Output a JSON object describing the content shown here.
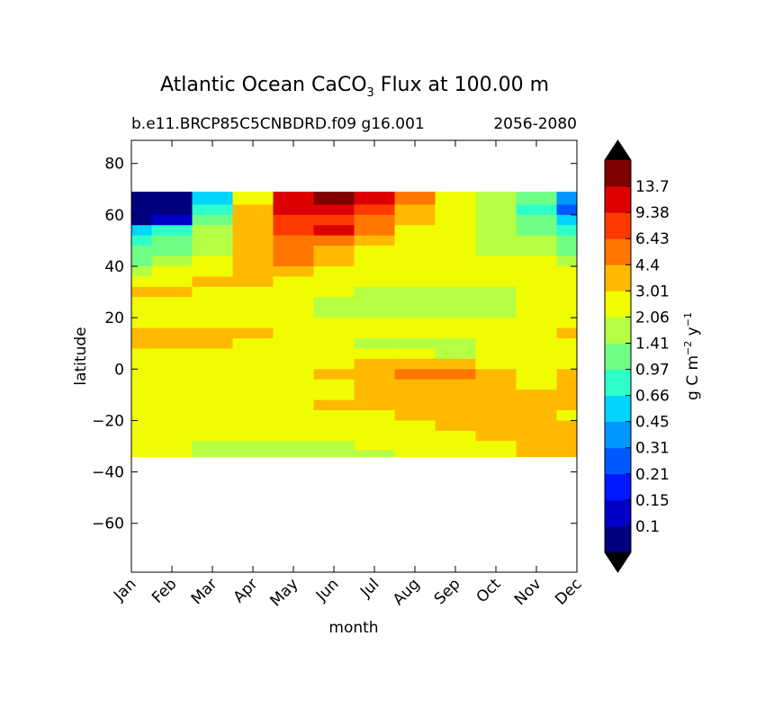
{
  "chart_data": {
    "type": "heatmap",
    "title_prefix": "Atlantic Ocean CaCO",
    "title_sub": "3",
    "title_suffix": " Flux at 100.00 m",
    "subtitle_left": "b.e11.BRCP85C5CNBDRD.f09 g16.001",
    "subtitle_right": "2056-2080",
    "xlabel": "month",
    "ylabel": "latitude",
    "x_ticks": [
      "Jan",
      "Feb",
      "Mar",
      "Apr",
      "May",
      "Jun",
      "Jul",
      "Aug",
      "Sep",
      "Oct",
      "Nov",
      "Dec"
    ],
    "y_ticks": [
      80,
      60,
      40,
      20,
      0,
      -20,
      -40,
      -60
    ],
    "ylim": [
      -79,
      89
    ],
    "data_lat_range": [
      -34,
      69
    ],
    "colorbar_label": "g C m",
    "colorbar_label_exp1": "−2",
    "colorbar_label_mid": " y",
    "colorbar_label_exp2": "−1",
    "levels": [
      "0.1",
      "0.15",
      "0.21",
      "0.31",
      "0.45",
      "0.66",
      "0.97",
      "1.41",
      "2.06",
      "3.01",
      "4.4",
      "6.43",
      "9.38",
      "13.7"
    ],
    "colors": [
      "#00007f",
      "#0000c8",
      "#0018ff",
      "#0058ff",
      "#0098ff",
      "#00d4ff",
      "#2effc9",
      "#70ff86",
      "#b4ff43",
      "#f0fd00",
      "#ffba00",
      "#ff7700",
      "#ff3a00",
      "#dd0000",
      "#800000"
    ],
    "under_color": "#000000",
    "over_color": "#000000",
    "latitude_bands": [
      66,
      62,
      58,
      54,
      50,
      46,
      42,
      38,
      34,
      30,
      26,
      22,
      18,
      14,
      10,
      6,
      2,
      -2,
      -6,
      -10,
      -14,
      -18,
      -22,
      -26,
      -30,
      -33
    ],
    "band_level_index": [
      [
        0,
        0,
        5,
        9,
        13,
        14,
        13,
        11,
        9,
        8,
        7,
        4
      ],
      [
        0,
        0,
        6,
        10,
        13,
        13,
        12,
        10,
        9,
        8,
        6,
        3
      ],
      [
        0,
        1,
        7,
        10,
        12,
        12,
        11,
        10,
        9,
        8,
        7,
        5
      ],
      [
        5,
        6,
        8,
        10,
        12,
        13,
        11,
        9,
        9,
        8,
        7,
        6
      ],
      [
        6,
        7,
        8,
        10,
        11,
        11,
        10,
        9,
        9,
        8,
        8,
        7
      ],
      [
        7,
        7,
        8,
        10,
        11,
        10,
        9,
        9,
        9,
        8,
        8,
        7
      ],
      [
        7,
        8,
        9,
        10,
        11,
        10,
        9,
        9,
        9,
        9,
        9,
        8
      ],
      [
        8,
        9,
        9,
        10,
        10,
        9,
        9,
        9,
        9,
        9,
        9,
        9
      ],
      [
        9,
        9,
        10,
        10,
        9,
        9,
        9,
        9,
        9,
        9,
        9,
        9
      ],
      [
        10,
        10,
        9,
        9,
        9,
        9,
        8,
        8,
        8,
        8,
        9,
        9
      ],
      [
        9,
        9,
        9,
        9,
        9,
        8,
        8,
        8,
        8,
        8,
        9,
        9
      ],
      [
        9,
        9,
        9,
        9,
        9,
        8,
        8,
        8,
        8,
        8,
        9,
        9
      ],
      [
        9,
        9,
        9,
        9,
        9,
        9,
        9,
        9,
        9,
        9,
        9,
        9
      ],
      [
        10,
        10,
        10,
        10,
        9,
        9,
        9,
        9,
        9,
        9,
        9,
        10
      ],
      [
        10,
        10,
        10,
        9,
        9,
        9,
        8,
        8,
        8,
        9,
        9,
        9
      ],
      [
        9,
        9,
        9,
        9,
        9,
        9,
        9,
        9,
        8,
        9,
        9,
        9
      ],
      [
        9,
        9,
        9,
        9,
        9,
        9,
        10,
        10,
        10,
        9,
        9,
        9
      ],
      [
        9,
        9,
        9,
        9,
        9,
        10,
        10,
        11,
        11,
        10,
        9,
        10
      ],
      [
        9,
        9,
        9,
        9,
        9,
        9,
        10,
        10,
        10,
        10,
        9,
        10
      ],
      [
        9,
        9,
        9,
        9,
        9,
        9,
        10,
        10,
        10,
        10,
        10,
        10
      ],
      [
        9,
        9,
        9,
        9,
        9,
        10,
        10,
        10,
        10,
        10,
        10,
        10
      ],
      [
        9,
        9,
        9,
        9,
        9,
        9,
        9,
        10,
        10,
        10,
        10,
        9
      ],
      [
        9,
        9,
        9,
        9,
        9,
        9,
        9,
        9,
        10,
        10,
        10,
        10
      ],
      [
        9,
        9,
        9,
        9,
        9,
        9,
        9,
        9,
        9,
        10,
        10,
        10
      ],
      [
        9,
        9,
        8,
        8,
        8,
        8,
        9,
        9,
        9,
        9,
        10,
        10
      ],
      [
        9,
        9,
        8,
        8,
        8,
        8,
        8,
        9,
        9,
        9,
        10,
        10
      ]
    ]
  }
}
